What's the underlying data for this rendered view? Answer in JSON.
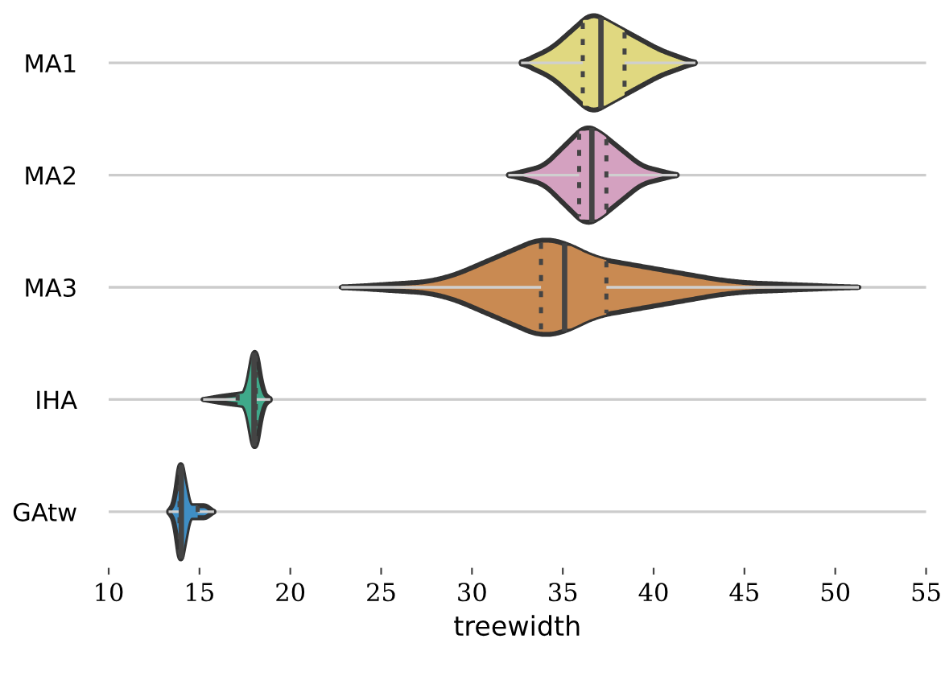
{
  "chart_data": {
    "type": "box",
    "orientation": "horizontal",
    "xlabel": "treewidth",
    "categories": [
      "MA1",
      "MA2",
      "MA3",
      "IHA",
      "GAtw"
    ],
    "colors": [
      "#e0d880",
      "#d4a1c0",
      "#c98a52",
      "#3fa98a",
      "#3f8ec4"
    ],
    "boxes": [
      {
        "low": 32.7,
        "q1": 36.1,
        "median": 37.1,
        "q3": 38.4,
        "high": 42.3
      },
      {
        "low": 32.0,
        "q1": 35.9,
        "median": 36.6,
        "q3": 37.4,
        "high": 41.3
      },
      {
        "low": 22.8,
        "q1": 33.8,
        "median": 35.1,
        "q3": 37.4,
        "high": 51.3
      },
      {
        "low": 15.2,
        "q1": 17.1,
        "median": 18.0,
        "q3": 18.1,
        "high": 18.9
      },
      {
        "low": 13.3,
        "q1": 13.9,
        "median": 14.0,
        "q3": 14.9,
        "high": 15.8
      }
    ],
    "xlim": [
      10,
      55
    ],
    "xticks": [
      10,
      15,
      20,
      25,
      30,
      35,
      40,
      45,
      50,
      55
    ],
    "grid": "y"
  }
}
